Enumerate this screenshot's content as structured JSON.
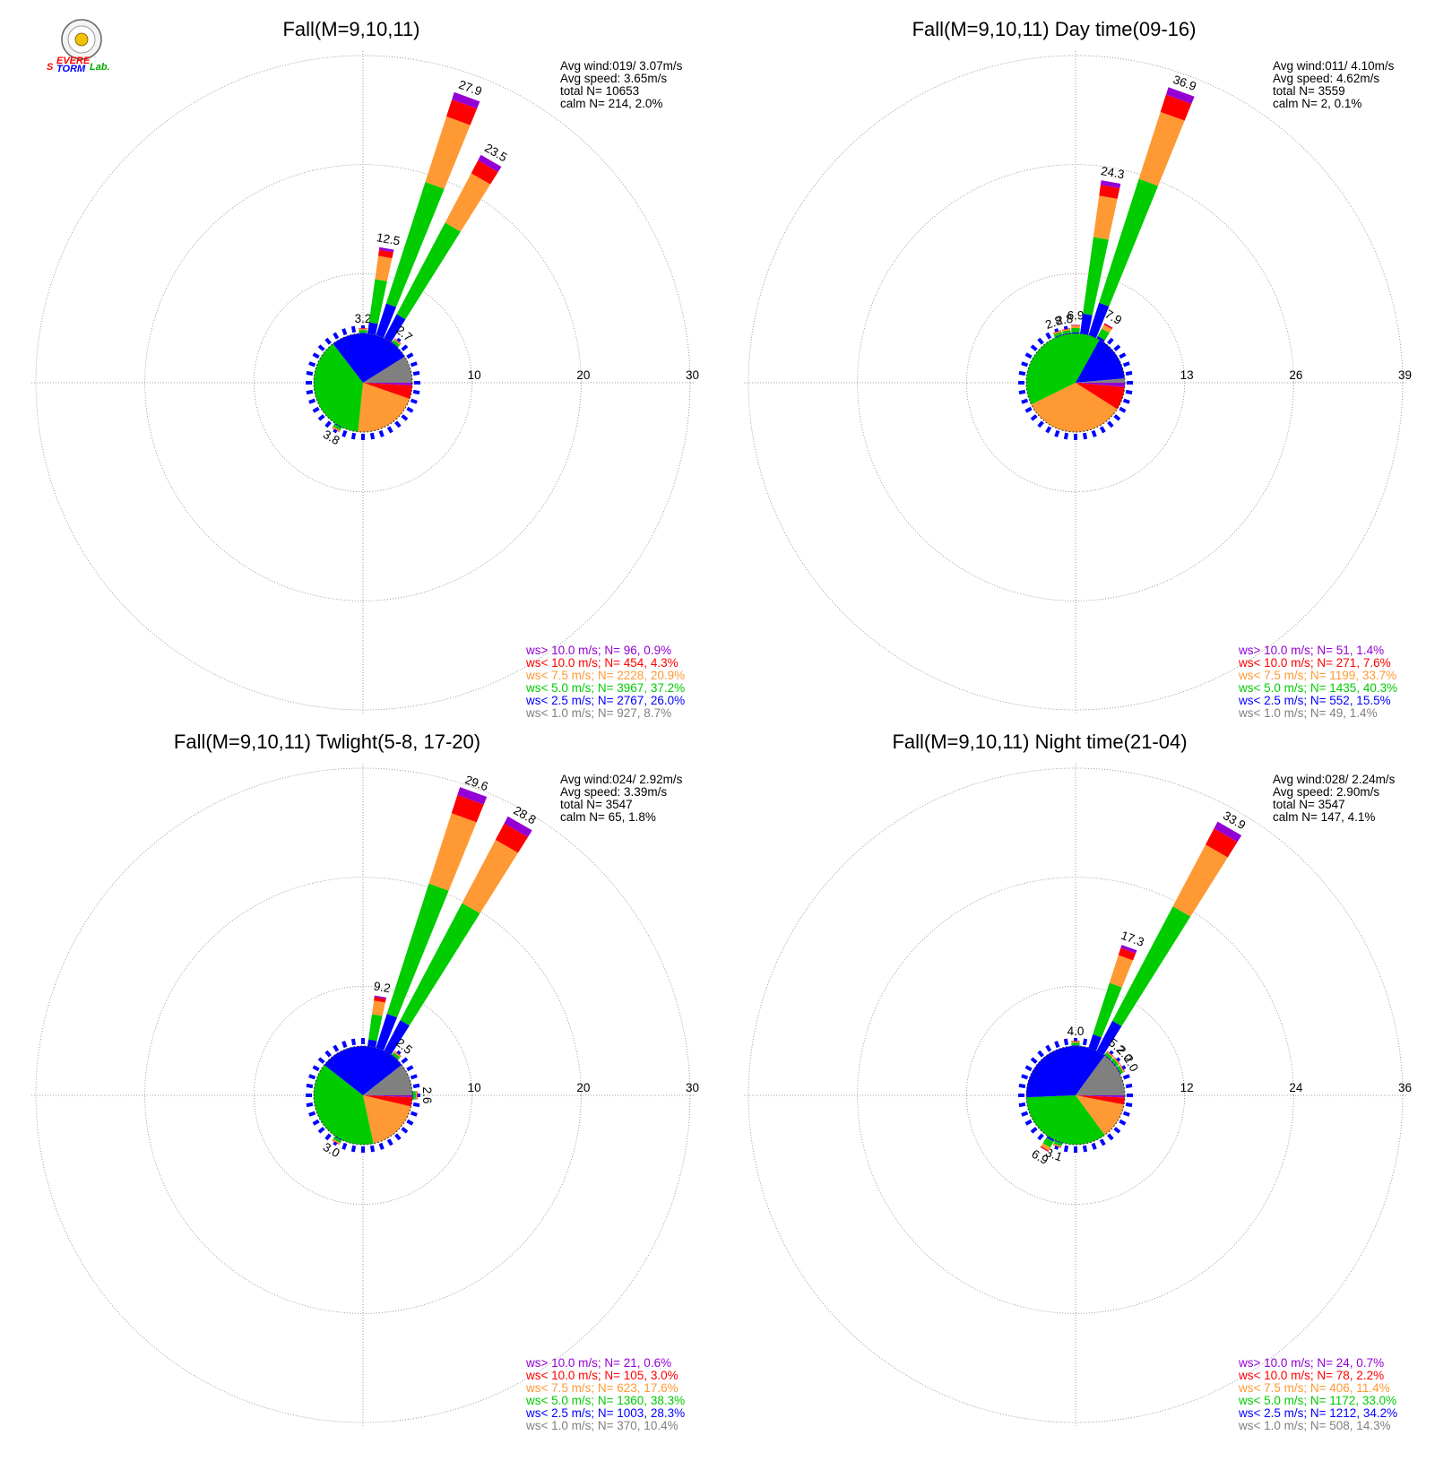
{
  "logo": {
    "letters_1": "S",
    "letters_2": "EVERE",
    "letters_3": "TORM",
    "letters_4": "Lab."
  },
  "colors": {
    "gt10": "#9400d3",
    "lt10": "#ff0000",
    "lt7_5": "#ff9933",
    "lt5": "#00cc00",
    "lt2_5": "#0000ff",
    "lt1": "#808080",
    "grid": "#888888"
  },
  "chart_data": [
    {
      "type": "windrose",
      "title": "Fall(M=9,10,11)",
      "ring_labels": [
        "10",
        "20",
        "30"
      ],
      "rmax": 30,
      "stats": [
        "Avg wind:019/ 3.07m/s",
        "Avg speed: 3.65m/s",
        "total N=      10653",
        "calm N=    214,  2.0%"
      ],
      "legend": [
        {
          "text": "ws> 10.0 m/s; N=    96,  0.9%",
          "class": "gt10"
        },
        {
          "text": "ws< 10.0 m/s; N=   454,  4.3%",
          "class": "lt10"
        },
        {
          "text": "ws<  7.5 m/s; N=  2228, 20.9%",
          "class": "lt7_5"
        },
        {
          "text": "ws<  5.0 m/s; N=  3967, 37.2%",
          "class": "lt5"
        },
        {
          "text": "ws<  2.5 m/s; N=  2767, 26.0%",
          "class": "lt2_5"
        },
        {
          "text": "ws<  1.0 m/s; N=   927,  8.7%",
          "class": "lt1"
        }
      ],
      "pie": [
        0.9,
        4.3,
        20.9,
        37.2,
        26.0,
        8.7
      ],
      "petals": [
        {
          "dir": 0,
          "total": 3.2,
          "label": "3.2"
        },
        {
          "dir": 10,
          "total": 12.5,
          "label": "12.5"
        },
        {
          "dir": 20,
          "total": 27.9,
          "label": "27.9"
        },
        {
          "dir": 30,
          "total": 23.5,
          "label": "23.5"
        },
        {
          "dir": 40,
          "total": 2.7,
          "label": "2.7"
        },
        {
          "dir": 210,
          "total": 3.8,
          "label": "3.8"
        }
      ]
    },
    {
      "type": "windrose",
      "title": "Fall(M=9,10,11) Day time(09-16)",
      "ring_labels": [
        "13",
        "26",
        "39"
      ],
      "rmax": 39,
      "stats": [
        "Avg wind:011/ 4.10m/s",
        "Avg speed: 4.62m/s",
        "total N=       3559",
        "calm N=      2,  0.1%"
      ],
      "legend": [
        {
          "text": "ws> 10.0 m/s; N=    51,  1.4%",
          "class": "gt10"
        },
        {
          "text": "ws< 10.0 m/s; N=   271,  7.6%",
          "class": "lt10"
        },
        {
          "text": "ws<  7.5 m/s; N=  1199, 33.7%",
          "class": "lt7_5"
        },
        {
          "text": "ws<  5.0 m/s; N=  1435, 40.3%",
          "class": "lt5"
        },
        {
          "text": "ws<  2.5 m/s; N=   552, 15.5%",
          "class": "lt2_5"
        },
        {
          "text": "ws<  1.0 m/s; N=    49,  1.4%",
          "class": "lt1"
        }
      ],
      "pie": [
        1.4,
        7.6,
        33.7,
        40.3,
        15.5,
        1.4
      ],
      "petals": [
        {
          "dir": 340,
          "total": 2.8,
          "label": "2.8"
        },
        {
          "dir": 350,
          "total": 2.8,
          "label": "2.8"
        },
        {
          "dir": 0,
          "total": 6.9,
          "label": "6.9"
        },
        {
          "dir": 10,
          "total": 24.3,
          "label": "24.3"
        },
        {
          "dir": 20,
          "total": 36.9,
          "label": "36.9"
        },
        {
          "dir": 30,
          "total": 7.9,
          "label": "7.9"
        }
      ]
    },
    {
      "type": "windrose",
      "title": "Fall(M=9,10,11) Twlight(5-8, 17-20)",
      "ring_labels": [
        "10",
        "20",
        "30"
      ],
      "rmax": 30,
      "stats": [
        "Avg wind:024/ 2.92m/s",
        "Avg speed: 3.39m/s",
        "total N=       3547",
        "calm N=     65,  1.8%"
      ],
      "legend": [
        {
          "text": "ws> 10.0 m/s; N=    21,  0.6%",
          "class": "gt10"
        },
        {
          "text": "ws< 10.0 m/s; N=   105,  3.0%",
          "class": "lt10"
        },
        {
          "text": "ws<  7.5 m/s; N=   623, 17.6%",
          "class": "lt7_5"
        },
        {
          "text": "ws<  5.0 m/s; N=  1360, 38.3%",
          "class": "lt5"
        },
        {
          "text": "ws<  2.5 m/s; N=  1003, 28.3%",
          "class": "lt2_5"
        },
        {
          "text": "ws<  1.0 m/s; N=   370, 10.4%",
          "class": "lt1"
        }
      ],
      "pie": [
        0.6,
        3.0,
        17.6,
        38.3,
        28.3,
        10.4
      ],
      "petals": [
        {
          "dir": 10,
          "total": 9.2,
          "label": "9.2"
        },
        {
          "dir": 20,
          "total": 29.6,
          "label": "29.6"
        },
        {
          "dir": 30,
          "total": 28.8,
          "label": "28.8"
        },
        {
          "dir": 40,
          "total": 2.5,
          "label": "2.5"
        },
        {
          "dir": 90,
          "total": 2.6,
          "label": "2.6"
        },
        {
          "dir": 210,
          "total": 3.0,
          "label": "3.0"
        }
      ]
    },
    {
      "type": "windrose",
      "title": "Fall(M=9,10,11) Night time(21-04)",
      "ring_labels": [
        "12",
        "24",
        "36"
      ],
      "rmax": 36,
      "stats": [
        "Avg wind:028/ 2.24m/s",
        "Avg speed: 2.90m/s",
        "total N=       3547",
        "calm N=    147,  4.1%"
      ],
      "legend": [
        {
          "text": "ws> 10.0 m/s; N=    24,  0.7%",
          "class": "gt10"
        },
        {
          "text": "ws< 10.0 m/s; N=    78,  2.2%",
          "class": "lt10"
        },
        {
          "text": "ws<  7.5 m/s; N=   406, 11.4%",
          "class": "lt7_5"
        },
        {
          "text": "ws<  5.0 m/s; N=  1172, 33.0%",
          "class": "lt5"
        },
        {
          "text": "ws<  2.5 m/s; N=  1212, 34.2%",
          "class": "lt2_5"
        },
        {
          "text": "ws<  1.0 m/s; N=   508, 14.3%",
          "class": "lt1"
        }
      ],
      "pie": [
        0.7,
        2.2,
        11.4,
        33.0,
        34.2,
        14.3
      ],
      "petals": [
        {
          "dir": 0,
          "total": 4.0,
          "label": "4.0"
        },
        {
          "dir": 20,
          "total": 17.3,
          "label": "17.3"
        },
        {
          "dir": 30,
          "total": 33.9,
          "label": "33.9"
        },
        {
          "dir": 40,
          "total": 5.2,
          "label": "5.2"
        },
        {
          "dir": 50,
          "total": 2.0,
          "label": "2.0"
        },
        {
          "dir": 60,
          "total": 2.0,
          "label": "2.0"
        },
        {
          "dir": 200,
          "total": 3.1,
          "label": "3.1"
        },
        {
          "dir": 210,
          "total": 6.9,
          "label": "6.9"
        }
      ]
    }
  ]
}
